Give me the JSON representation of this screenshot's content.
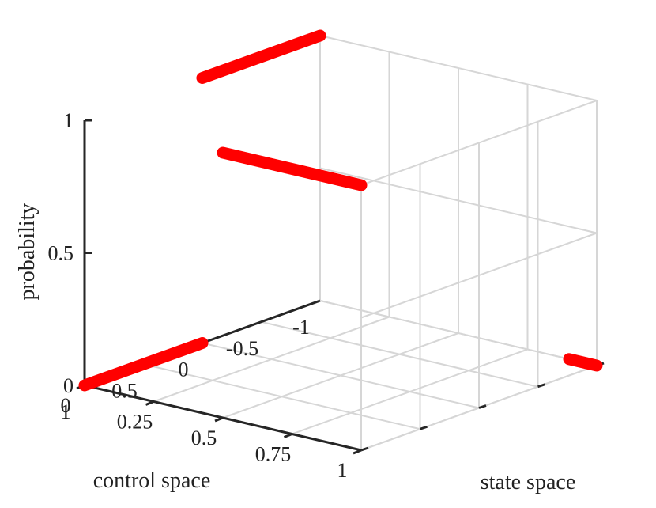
{
  "chart_data": {
    "type": "line3d",
    "xlabel": "state space",
    "ylabel": "control space",
    "zlabel": "probability",
    "xlim": [
      0,
      1
    ],
    "ylim": [
      -1,
      1
    ],
    "zlim": [
      0,
      1
    ],
    "x_ticks": [
      0,
      0.25,
      0.5,
      0.75,
      1
    ],
    "x_tick_labels": [
      "0",
      "0.25",
      "0.5",
      "0.75",
      "1"
    ],
    "y_ticks": [
      -1,
      -0.5,
      0,
      0.5,
      1
    ],
    "y_tick_labels": [
      "-1",
      "-0.5",
      "0",
      "0.5",
      "1"
    ],
    "z_ticks": [
      0,
      0.5,
      1
    ],
    "z_tick_labels": [
      "0",
      "0.5",
      "1"
    ],
    "grid": true,
    "line_color": "#ff0000",
    "series": [
      {
        "points": [
          [
            0,
            1,
            0
          ],
          [
            0,
            0,
            0
          ]
        ]
      },
      {
        "points": [
          [
            0,
            0,
            1
          ],
          [
            0,
            -1,
            1
          ]
        ]
      },
      {
        "points": [
          [
            0.5,
            1,
            1
          ],
          [
            1,
            1,
            1
          ]
        ]
      },
      {
        "points": [
          [
            0.9,
            -1,
            0
          ],
          [
            1,
            -1,
            0
          ]
        ]
      }
    ]
  }
}
